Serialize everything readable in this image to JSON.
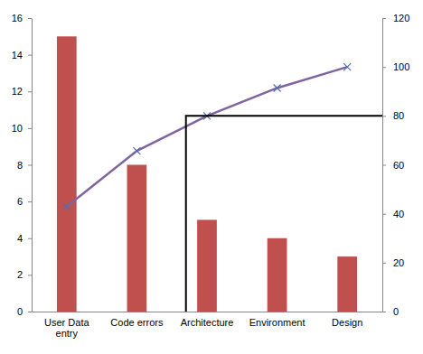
{
  "chart_data": {
    "type": "bar",
    "categories": [
      "User Data entry",
      "Code errors",
      "Architecture",
      "Environment",
      "Design"
    ],
    "series": [
      {
        "type": "bar",
        "color": "#c0504d",
        "values": [
          15,
          8,
          5,
          4,
          3
        ]
      },
      {
        "type": "line",
        "axis": "y2",
        "color": "#8064a2",
        "marker": "x",
        "values": [
          42.9,
          65.7,
          80,
          91.4,
          100
        ]
      }
    ],
    "ylim": [
      0,
      16
    ],
    "yticks": [
      0,
      2,
      4,
      6,
      8,
      10,
      12,
      14,
      16
    ],
    "y2lim": [
      0,
      120
    ],
    "y2ticks": [
      0,
      20,
      40,
      60,
      80,
      100,
      120
    ],
    "cutoff": 80,
    "grid": false
  }
}
